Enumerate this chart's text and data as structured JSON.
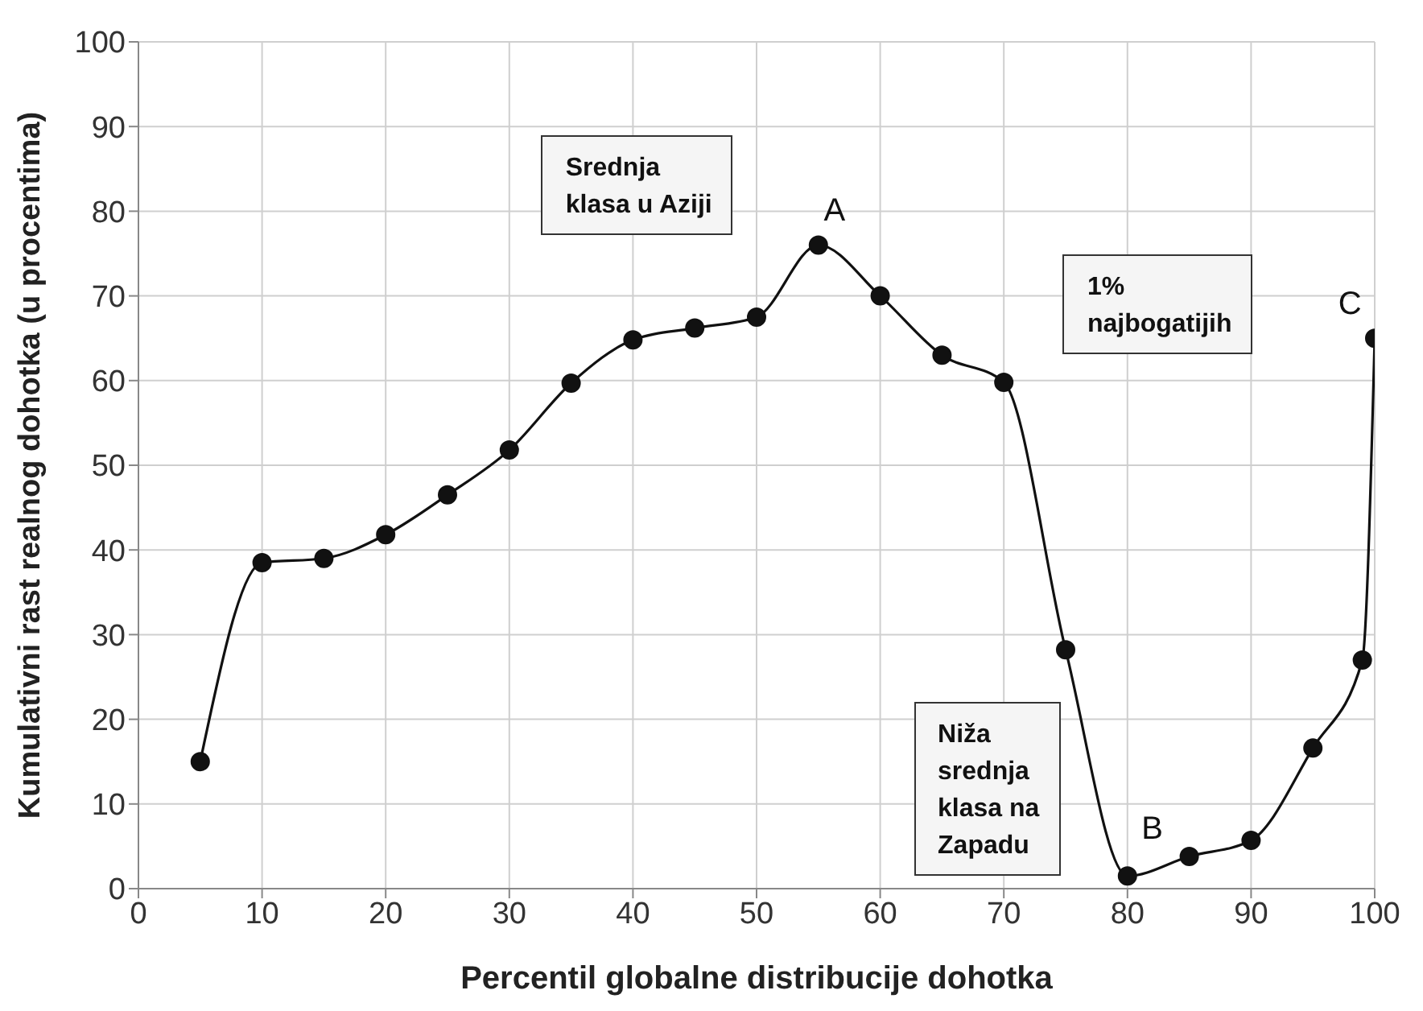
{
  "chart_data": {
    "type": "line",
    "xlabel": "Percentil globalne distribucije dohotka",
    "ylabel": "Kumulativni rast realnog dohotka (u procentima)",
    "x": [
      5,
      10,
      15,
      20,
      25,
      30,
      35,
      40,
      45,
      50,
      55,
      60,
      65,
      70,
      75,
      80,
      85,
      90,
      95,
      99,
      100
    ],
    "series": [
      {
        "color": "#111111",
        "values": [
          15,
          38.5,
          39,
          41.8,
          46.5,
          51.8,
          59.7,
          64.8,
          66.2,
          67.5,
          76,
          70,
          63,
          59.8,
          28.2,
          1.5,
          3.8,
          5.7,
          16.6,
          27,
          65
        ]
      }
    ],
    "xlim": [
      0,
      100
    ],
    "xticks": [
      0,
      10,
      20,
      30,
      40,
      50,
      60,
      70,
      80,
      90,
      100
    ],
    "ylim": [
      0,
      100
    ],
    "yticks": [
      0,
      10,
      20,
      30,
      40,
      50,
      60,
      70,
      80,
      90,
      100
    ],
    "grid": true,
    "legend": false,
    "marker": "circle",
    "line_style": "solid",
    "annotations": [
      "Srednja\nklasa u Aziji",
      "A",
      "1%\nnajbogatijih",
      "C",
      "Niža\nsrednja\nklasa na\nZapadu",
      "B"
    ]
  }
}
